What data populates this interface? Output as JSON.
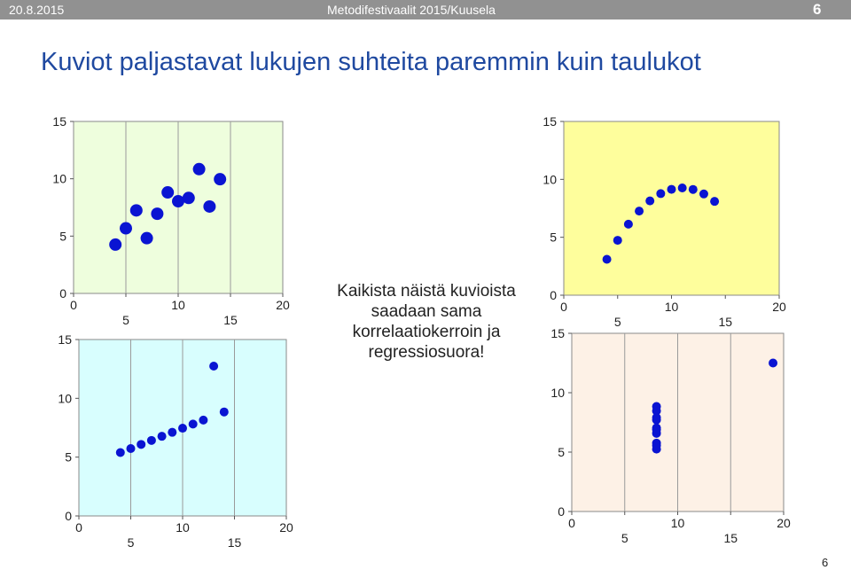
{
  "header": {
    "date": "20.8.2015",
    "title": "Metodifestivaalit 2015/Kuusela",
    "slide_number": "6"
  },
  "slide_title": "Kuviot paljastavat lukujen suhteita paremmin kuin taulukot",
  "caption": "Kaikista näistä kuvioista saadaan sama korrelaatiokerroin ja regressiosuora!",
  "footer_page": "6",
  "colors": {
    "title": "#1f49a0",
    "points": "#0a14d2",
    "panel1_bg": "#eefedd",
    "panel2_bg": "#fefe9c",
    "panel3_bg": "#d8fefe",
    "panel4_bg": "#fdf1e6"
  },
  "chart_data": [
    {
      "type": "scatter",
      "background": "#eefedd",
      "xlim": [
        0,
        20
      ],
      "ylim": [
        0,
        15
      ],
      "xticks": [
        "0",
        "5",
        "10",
        "15",
        "20"
      ],
      "yticks": [
        "0",
        "5",
        "10",
        "15"
      ],
      "grid": true,
      "points": [
        [
          4,
          4.26
        ],
        [
          5,
          5.68
        ],
        [
          6,
          7.24
        ],
        [
          7,
          4.82
        ],
        [
          8,
          6.95
        ],
        [
          9,
          8.81
        ],
        [
          10,
          8.04
        ],
        [
          11,
          8.33
        ],
        [
          12,
          10.84
        ],
        [
          13,
          7.58
        ],
        [
          14,
          9.96
        ]
      ]
    },
    {
      "type": "scatter",
      "background": "#fefe9c",
      "xlim": [
        0,
        20
      ],
      "ylim": [
        0,
        15
      ],
      "xticks": [
        "0",
        "5",
        "10",
        "15",
        "20"
      ],
      "yticks": [
        "0",
        "5",
        "10",
        "15"
      ],
      "grid": false,
      "points": [
        [
          4,
          3.1
        ],
        [
          5,
          4.74
        ],
        [
          6,
          6.13
        ],
        [
          7,
          7.26
        ],
        [
          8,
          8.14
        ],
        [
          9,
          8.77
        ],
        [
          10,
          9.14
        ],
        [
          11,
          9.26
        ],
        [
          12,
          9.13
        ],
        [
          13,
          8.74
        ],
        [
          14,
          8.1
        ]
      ]
    },
    {
      "type": "scatter",
      "background": "#d8fefe",
      "xlim": [
        0,
        20
      ],
      "ylim": [
        0,
        15
      ],
      "xticks": [
        "0",
        "5",
        "10",
        "15",
        "20"
      ],
      "yticks": [
        "0",
        "5",
        "10",
        "15"
      ],
      "grid": true,
      "points": [
        [
          4,
          5.39
        ],
        [
          5,
          5.73
        ],
        [
          6,
          6.08
        ],
        [
          7,
          6.42
        ],
        [
          8,
          6.77
        ],
        [
          9,
          7.11
        ],
        [
          10,
          7.46
        ],
        [
          11,
          7.81
        ],
        [
          12,
          8.15
        ],
        [
          13,
          12.74
        ],
        [
          14,
          8.84
        ]
      ]
    },
    {
      "type": "scatter",
      "background": "#fdf1e6",
      "xlim": [
        0,
        20
      ],
      "ylim": [
        0,
        15
      ],
      "xticks": [
        "0",
        "5",
        "10",
        "15",
        "20"
      ],
      "yticks": [
        "0",
        "5",
        "10",
        "15"
      ],
      "grid": true,
      "points": [
        [
          8,
          6.58
        ],
        [
          8,
          5.76
        ],
        [
          8,
          7.71
        ],
        [
          8,
          8.84
        ],
        [
          8,
          8.47
        ],
        [
          8,
          7.04
        ],
        [
          8,
          5.25
        ],
        [
          19,
          12.5
        ],
        [
          8,
          5.56
        ],
        [
          8,
          7.91
        ],
        [
          8,
          6.89
        ]
      ]
    }
  ]
}
